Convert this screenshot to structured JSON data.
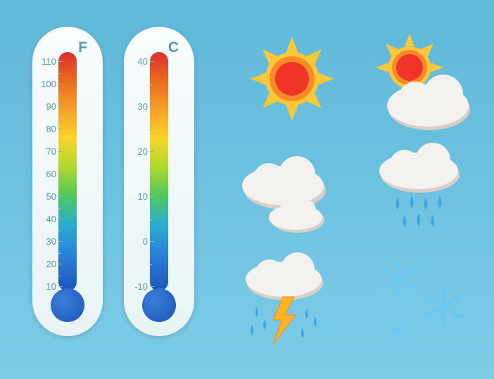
{
  "background": {
    "top_color": "#5fb8d8",
    "bottom_color": "#7dcce8"
  },
  "thermometers": {
    "fahrenheit": {
      "label": "F",
      "ticks": [
        110,
        100,
        90,
        80,
        70,
        60,
        50,
        40,
        30,
        20,
        10
      ],
      "tick_color": "#5a99b0",
      "body_color": "#f8fcfc",
      "bulb_color": "#1a56b8",
      "gradient_stops": [
        {
          "c": "#d93030",
          "p": 0
        },
        {
          "c": "#ea6a1e",
          "p": 12
        },
        {
          "c": "#f8a028",
          "p": 24
        },
        {
          "c": "#f8d428",
          "p": 36
        },
        {
          "c": "#b0d82e",
          "p": 48
        },
        {
          "c": "#4fc85a",
          "p": 60
        },
        {
          "c": "#2aaed0",
          "p": 72
        },
        {
          "c": "#2a7ed8",
          "p": 86
        },
        {
          "c": "#1a56b8",
          "p": 100
        }
      ],
      "scale_min": 10,
      "scale_max": 110
    },
    "celsius": {
      "label": "C",
      "ticks": [
        40,
        30,
        20,
        10,
        0,
        -10
      ],
      "tick_color": "#5a99b0",
      "body_color": "#f8fcfc",
      "bulb_color": "#1a56b8",
      "gradient_stops": [
        {
          "c": "#d93030",
          "p": 0
        },
        {
          "c": "#ea6a1e",
          "p": 12
        },
        {
          "c": "#f8a028",
          "p": 24
        },
        {
          "c": "#f8d428",
          "p": 36
        },
        {
          "c": "#b0d82e",
          "p": 48
        },
        {
          "c": "#4fc85a",
          "p": 60
        },
        {
          "c": "#2aaed0",
          "p": 72
        },
        {
          "c": "#2a7ed8",
          "p": 86
        },
        {
          "c": "#1a56b8",
          "p": 100
        }
      ],
      "scale_min": -10,
      "scale_max": 40
    }
  },
  "weather_icons": {
    "sunny": {
      "name": "sunny",
      "sun_core": "#f03428",
      "sun_mid": "#f88a28",
      "sun_rim": "#fbc838"
    },
    "partly_cloudy": {
      "name": "partly-cloudy",
      "sun_core": "#f03428",
      "sun_mid": "#f88a28",
      "sun_rim": "#fbc838",
      "cloud_fill": "#f4f2ee",
      "cloud_shadow": "#d8d0c8"
    },
    "cloudy": {
      "name": "cloudy",
      "cloud_fill": "#f4f2ee",
      "cloud_shadow": "#d8d0c8"
    },
    "rain": {
      "name": "rain",
      "cloud_fill": "#f4f2ee",
      "cloud_shadow": "#d8d0c8",
      "drop_color": "#3fa8e0"
    },
    "thunderstorm": {
      "name": "thunderstorm",
      "cloud_fill": "#f4f2ee",
      "cloud_shadow": "#d8d0c8",
      "drop_color": "#3fa8e0",
      "bolt_color": "#ffb428",
      "bolt_edge": "#f08a1e"
    },
    "snow": {
      "name": "snow",
      "flake_color": "#68c8f0"
    }
  }
}
